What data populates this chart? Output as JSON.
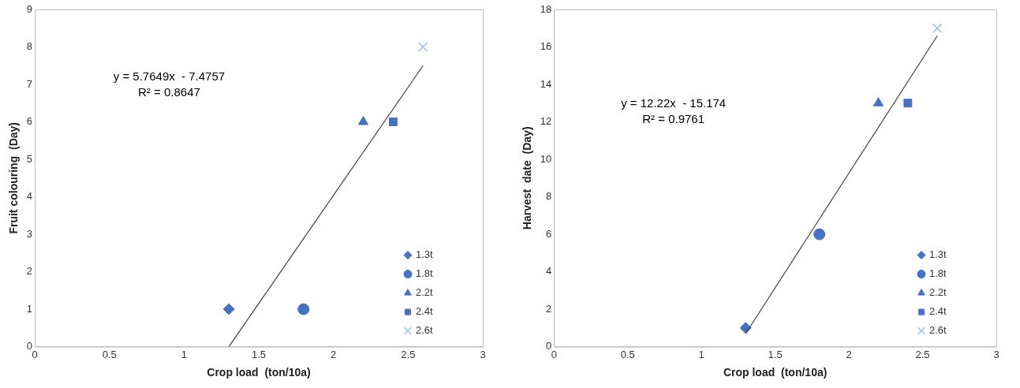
{
  "chart_data": [
    {
      "type": "scatter",
      "xlabel": "Crop load  (ton/10a)",
      "ylabel": "Fruit colouring  (Day)",
      "xlim": [
        0,
        3
      ],
      "xticks": [
        0,
        0.5,
        1,
        1.5,
        2,
        2.5,
        3
      ],
      "ylim": [
        0,
        9
      ],
      "yticks": [
        0,
        1,
        2,
        3,
        4,
        5,
        6,
        7,
        8,
        9
      ],
      "grid": false,
      "legend": "bottom right",
      "annotations": [
        "y = 5.7649x  - 7.4757",
        "R² = 0.8647"
      ],
      "series": [
        {
          "name": "1.3t",
          "color": "#4472c4",
          "marker": "diamond",
          "x": [
            1.3
          ],
          "values": [
            1
          ]
        },
        {
          "name": "1.8t",
          "color": "#4472c4",
          "marker": "circle",
          "x": [
            1.8
          ],
          "values": [
            1
          ]
        },
        {
          "name": "2.2t",
          "color": "#4472c4",
          "marker": "triangle",
          "x": [
            2.2
          ],
          "values": [
            6
          ]
        },
        {
          "name": "2.4t",
          "color": "#4472c4",
          "marker": "square",
          "x": [
            2.4
          ],
          "values": [
            6
          ]
        },
        {
          "name": "2.6t",
          "color": "#9dc3e6",
          "marker": "cross",
          "x": [
            2.6
          ],
          "values": [
            8
          ]
        },
        {
          "type": "line",
          "color": "#404040",
          "marker": "none",
          "x": [
            1.3,
            2.6
          ],
          "values": [
            0,
            7.5
          ]
        }
      ]
    },
    {
      "type": "scatter",
      "xlabel": "Crop load  (ton/10a)",
      "ylabel": "Harvest  date  (Day)",
      "xlim": [
        0,
        3
      ],
      "xticks": [
        0,
        0.5,
        1,
        1.5,
        2,
        2.5,
        3
      ],
      "ylim": [
        0,
        18
      ],
      "yticks": [
        0,
        2,
        4,
        6,
        8,
        10,
        12,
        14,
        16,
        18
      ],
      "grid": false,
      "legend": "bottom right",
      "annotations": [
        "y = 12.22x  - 15.174",
        "R² = 0.9761"
      ],
      "series": [
        {
          "name": "1.3t",
          "color": "#4472c4",
          "marker": "diamond",
          "x": [
            1.3
          ],
          "values": [
            1
          ]
        },
        {
          "name": "1.8t",
          "color": "#4472c4",
          "marker": "circle",
          "x": [
            1.8
          ],
          "values": [
            6
          ]
        },
        {
          "name": "2.2t",
          "color": "#4472c4",
          "marker": "triangle",
          "x": [
            2.2
          ],
          "values": [
            13
          ]
        },
        {
          "name": "2.4t",
          "color": "#4472c4",
          "marker": "square",
          "x": [
            2.4
          ],
          "values": [
            13
          ]
        },
        {
          "name": "2.6t",
          "color": "#9dc3e6",
          "marker": "cross",
          "x": [
            2.6
          ],
          "values": [
            17
          ]
        },
        {
          "type": "line",
          "color": "#404040",
          "marker": "none",
          "x": [
            1.3,
            2.6
          ],
          "values": [
            0.7,
            16.6
          ]
        }
      ]
    }
  ]
}
